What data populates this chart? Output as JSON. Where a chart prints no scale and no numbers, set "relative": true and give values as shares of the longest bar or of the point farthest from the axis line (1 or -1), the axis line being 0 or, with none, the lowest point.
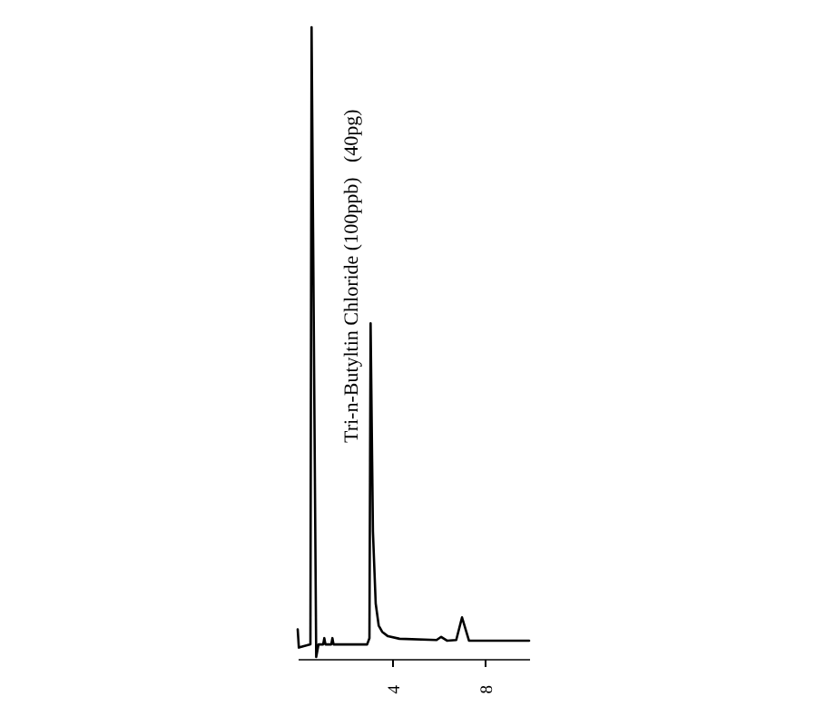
{
  "chart_data": {
    "type": "line",
    "relative": true,
    "xlim": [
      -0.1,
      9.9
    ],
    "xticks": [
      4,
      8
    ],
    "annotations": [
      {
        "text": "Tri-n-Butyltin Chloride (100ppb)   (40pg)",
        "x": 3.05,
        "y": 0.34
      }
    ],
    "series": [
      {
        "color": "#000000",
        "x": [
          -0.1,
          -0.05,
          0.45,
          0.5,
          0.7,
          0.8,
          1.0,
          1.05,
          1.1,
          1.35,
          1.4,
          1.45,
          2.9,
          3.0,
          3.05,
          3.15,
          3.27,
          3.4,
          3.55,
          3.8,
          4.3,
          5.9,
          6.1,
          6.35,
          6.75,
          7.0,
          7.3,
          9.9
        ],
        "values": [
          0.044,
          0.015,
          0.02,
          1.0,
          0.0,
          0.02,
          0.02,
          0.03,
          0.02,
          0.02,
          0.03,
          0.02,
          0.02,
          0.03,
          0.53,
          0.2,
          0.085,
          0.05,
          0.04,
          0.033,
          0.029,
          0.027,
          0.032,
          0.026,
          0.027,
          0.063,
          0.026,
          0.026
        ]
      }
    ]
  }
}
